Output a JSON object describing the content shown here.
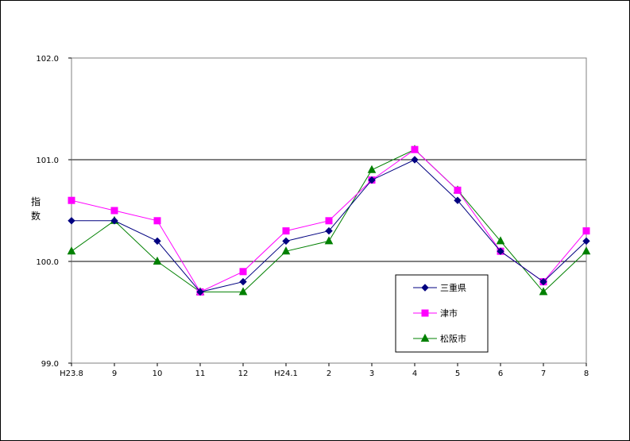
{
  "chart_data": {
    "type": "line",
    "title": "",
    "ylabel": "指数",
    "xlabel": "",
    "categories": [
      "H23.8",
      "9",
      "10",
      "11",
      "12",
      "H24.1",
      "2",
      "3",
      "4",
      "5",
      "6",
      "7",
      "8"
    ],
    "ylim": [
      99.0,
      102.0
    ],
    "yticks": [
      "99.0",
      "100.0",
      "101.0",
      "102.0"
    ],
    "grid": true,
    "legend_position": "bottom-right",
    "series": [
      {
        "name": "三重県",
        "color": "#000080",
        "marker": "diamond",
        "values": [
          100.4,
          100.4,
          100.2,
          99.7,
          99.8,
          100.2,
          100.3,
          100.8,
          101.0,
          100.6,
          100.1,
          99.8,
          100.2
        ]
      },
      {
        "name": "津市",
        "color": "#FF00FF",
        "marker": "square",
        "values": [
          100.6,
          100.5,
          100.4,
          99.7,
          99.9,
          100.3,
          100.4,
          100.8,
          101.1,
          100.7,
          100.1,
          99.8,
          100.3
        ]
      },
      {
        "name": "松阪市",
        "color": "#008000",
        "marker": "triangle",
        "values": [
          100.1,
          100.4,
          100.0,
          99.7,
          99.7,
          100.1,
          100.2,
          100.9,
          101.1,
          100.7,
          100.2,
          99.7,
          100.1
        ]
      }
    ]
  }
}
